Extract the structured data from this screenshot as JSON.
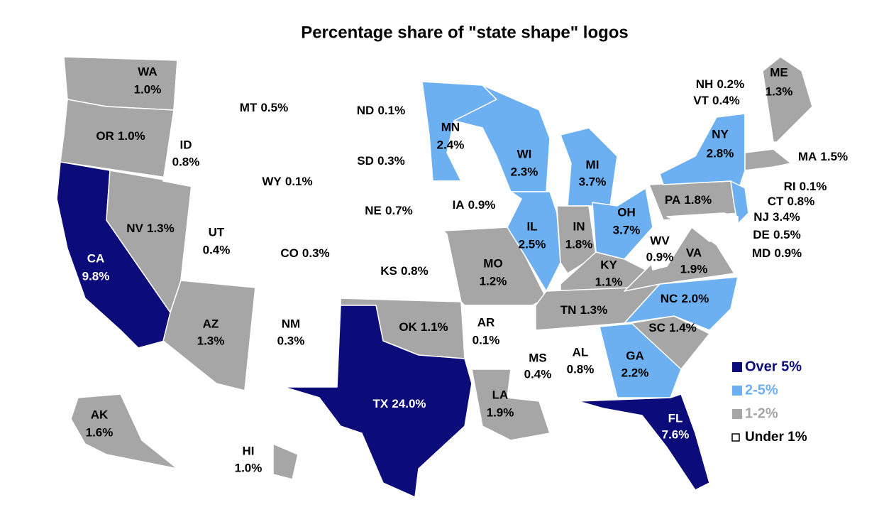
{
  "chart_data": {
    "type": "choropleth",
    "title": "Percentage share of \"state shape\" logos",
    "categories": [
      "WA",
      "OR",
      "CA",
      "NV",
      "ID",
      "MT",
      "WY",
      "UT",
      "CO",
      "AZ",
      "NM",
      "ND",
      "SD",
      "NE",
      "KS",
      "OK",
      "TX",
      "MN",
      "IA",
      "MO",
      "AR",
      "LA",
      "WI",
      "IL",
      "MI",
      "IN",
      "OH",
      "KY",
      "TN",
      "MS",
      "AL",
      "GA",
      "FL",
      "SC",
      "NC",
      "VA",
      "WV",
      "PA",
      "NY",
      "NJ",
      "DE",
      "MD",
      "CT",
      "RI",
      "MA",
      "VT",
      "NH",
      "ME",
      "AK",
      "HI"
    ],
    "values": [
      1.0,
      1.0,
      9.8,
      1.3,
      0.8,
      0.5,
      0.1,
      0.4,
      0.3,
      1.3,
      0.3,
      0.1,
      0.3,
      0.7,
      0.8,
      1.1,
      24.0,
      2.4,
      0.9,
      1.2,
      0.1,
      1.9,
      2.3,
      2.5,
      3.7,
      1.8,
      3.7,
      1.1,
      1.3,
      0.4,
      0.8,
      2.2,
      7.6,
      1.4,
      2.0,
      1.9,
      0.9,
      1.8,
      2.8,
      3.4,
      0.5,
      0.9,
      0.8,
      0.1,
      1.5,
      0.4,
      0.2,
      1.3,
      1.6,
      1.0
    ],
    "value_labels": [
      "1.0%",
      "1.0%",
      "9.8%",
      "1.3%",
      "0.8%",
      "0.5%",
      "0.1%",
      "0.4%",
      "0.3%",
      "1.3%",
      "0.3%",
      "0.1%",
      "0.3%",
      "0.7%",
      "0.8%",
      "1.1%",
      "24.0%",
      "2.4%",
      "0.9%",
      "1.2%",
      "0.1%",
      "1.9%",
      "2.3%",
      "2.5%",
      "3.7%",
      "1.8%",
      "3.7%",
      "1.1%",
      "1.3%",
      "0.4%",
      "0.8%",
      "2.2%",
      "7.6%",
      "1.4%",
      "2.0%",
      "1.9%",
      "0.9%",
      "1.8%",
      "2.8%",
      "3.4%",
      "0.5%",
      "0.9%",
      "0.8%",
      "0.1%",
      "1.5%",
      "0.4%",
      "0.2%",
      "1.3%",
      "1.6%",
      "1.0%"
    ],
    "legend": [
      {
        "label": "Over 5%",
        "min": 5,
        "color": "#0b0b7a",
        "label_color": "#0b0b7a",
        "text_color": "#ffffff"
      },
      {
        "label": "2-5%",
        "min": 2,
        "color": "#6cb0f2",
        "label_color": "#6cb0f2",
        "text_color": "#000000"
      },
      {
        "label": "1-2%",
        "min": 1,
        "color": "#a6a6a6",
        "label_color": "#a6a6a6",
        "text_color": "#000000"
      },
      {
        "label": "Under 1%",
        "min": 0,
        "color": "#ffffff",
        "label_color": "#000000",
        "text_color": "#000000"
      }
    ]
  }
}
